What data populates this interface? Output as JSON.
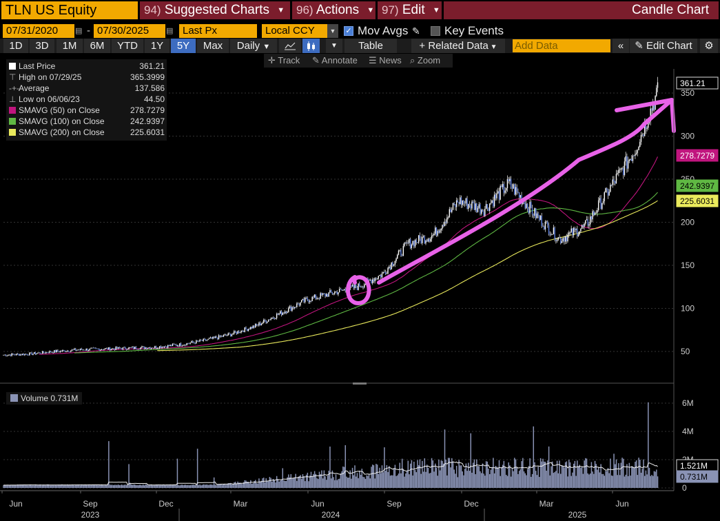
{
  "header": {
    "ticker": "TLN US Equity",
    "menus": [
      {
        "num": "94)",
        "label": "Suggested Charts"
      },
      {
        "num": "96)",
        "label": "Actions"
      },
      {
        "num": "97)",
        "label": "Edit"
      }
    ],
    "chart_title": "Candle Chart"
  },
  "controls": {
    "start_date": "07/31/2020",
    "end_date": "07/30/2025",
    "field": "Last Px",
    "currency": "Local CCY",
    "mov_avgs_label": "Mov Avgs",
    "mov_avgs_checked": true,
    "key_events_label": "Key Events",
    "key_events_checked": false
  },
  "toolbar": {
    "periods": [
      "1D",
      "3D",
      "1M",
      "6M",
      "YTD",
      "1Y",
      "5Y",
      "Max"
    ],
    "active_period": "5Y",
    "frequency": "Daily",
    "table_label": "Table",
    "related_data_label": "Related Data",
    "add_data_placeholder": "Add Data",
    "edit_chart_label": "Edit Chart"
  },
  "tools": {
    "track": "Track",
    "annotate": "Annotate",
    "news": "News",
    "zoom": "Zoom"
  },
  "legend": {
    "last_price_label": "Last Price",
    "last_price": "361.21",
    "high_label": "High on 07/29/25",
    "high": "365.3999",
    "average_label": "Average",
    "average": "137.586",
    "low_label": "Low on 06/06/23",
    "low": "44.50",
    "sma50_label": "SMAVG (50)  on Close",
    "sma50": "278.7279",
    "sma100_label": "SMAVG (100)  on Close",
    "sma100": "242.9397",
    "sma200_label": "SMAVG (200)  on Close",
    "sma200": "225.6031"
  },
  "volume_legend": {
    "label": "Volume",
    "value": "0.731M"
  },
  "colors": {
    "sma50": "#c0157e",
    "sma100": "#5fb843",
    "sma200": "#eaea5c",
    "volume": "#8a93b5",
    "accent": "#f2a900",
    "menu": "#7b1d2c",
    "annotation": "#e862e8"
  },
  "chart_data": {
    "type": "candlestick",
    "price_axis": {
      "ticks": [
        50,
        100,
        150,
        200,
        250,
        300,
        350
      ],
      "range": [
        25,
        370
      ]
    },
    "volume_axis": {
      "ticks": [
        "0",
        "2M",
        "4M",
        "6M"
      ],
      "range": [
        0,
        7
      ]
    },
    "x_axis": {
      "months": [
        "Jun",
        "Sep",
        "Dec",
        "Mar",
        "Jun",
        "Sep",
        "Dec",
        "Mar",
        "Jun"
      ],
      "years": [
        "2023",
        "2024",
        "2025"
      ]
    },
    "price_labels": {
      "last": "361.21",
      "sma50": "278.7279",
      "sma100": "242.9397",
      "sma200": "225.6031"
    },
    "volume_labels": {
      "vol_avg": "1.521M",
      "vol_last": "0.731M"
    },
    "price_path": [
      [
        "2023-05",
        46
      ],
      [
        "2023-06",
        47
      ],
      [
        "2023-07",
        50
      ],
      [
        "2023-08",
        52
      ],
      [
        "2023-09",
        53
      ],
      [
        "2023-10",
        54
      ],
      [
        "2023-11",
        55
      ],
      [
        "2023-12",
        58
      ],
      [
        "2024-01",
        63
      ],
      [
        "2024-02",
        70
      ],
      [
        "2024-03",
        80
      ],
      [
        "2024-04",
        95
      ],
      [
        "2024-05",
        110
      ],
      [
        "2024-06",
        118
      ],
      [
        "2024-07",
        125
      ],
      [
        "2024-08",
        140
      ],
      [
        "2024-09",
        175
      ],
      [
        "2024-10",
        185
      ],
      [
        "2024-11",
        225
      ],
      [
        "2024-12",
        215
      ],
      [
        "2025-01",
        245
      ],
      [
        "2025-02",
        210
      ],
      [
        "2025-03",
        180
      ],
      [
        "2025-04",
        195
      ],
      [
        "2025-05",
        240
      ],
      [
        "2025-06",
        285
      ],
      [
        "2025-07",
        361
      ]
    ]
  }
}
